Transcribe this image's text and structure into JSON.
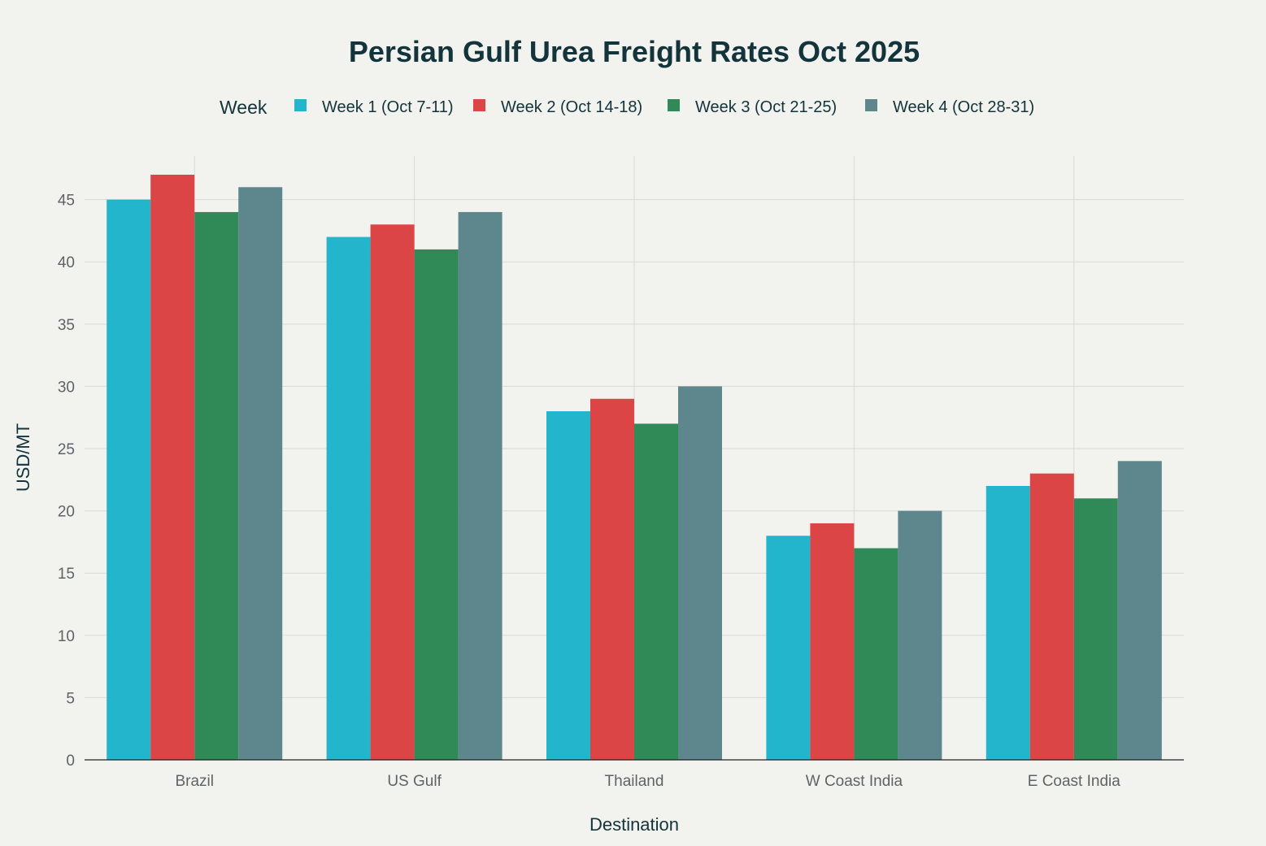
{
  "chart_data": {
    "type": "bar",
    "title": "Persian Gulf Urea Freight Rates Oct 2025",
    "xlabel": "Destination",
    "ylabel": "USD/MT",
    "legend_title": "Week",
    "legend_position": "top",
    "grid": true,
    "ylim": [
      0,
      48.5
    ],
    "yticks": [
      0,
      5,
      10,
      15,
      20,
      25,
      30,
      35,
      40,
      45
    ],
    "categories": [
      "Brazil",
      "US Gulf",
      "Thailand",
      "W Coast India",
      "E Coast India"
    ],
    "series": [
      {
        "name": "Week 1 (Oct 7-11)",
        "color": "#22b5cc",
        "values": [
          45,
          42,
          28,
          18,
          22
        ]
      },
      {
        "name": "Week 2 (Oct 14-18)",
        "color": "#db4545",
        "values": [
          47,
          43,
          29,
          19,
          23
        ]
      },
      {
        "name": "Week 3 (Oct 21-25)",
        "color": "#2f8a57",
        "values": [
          44,
          41,
          27,
          17,
          21
        ]
      },
      {
        "name": "Week 4 (Oct 28-31)",
        "color": "#5e878d",
        "values": [
          46,
          44,
          30,
          20,
          24
        ]
      }
    ]
  }
}
